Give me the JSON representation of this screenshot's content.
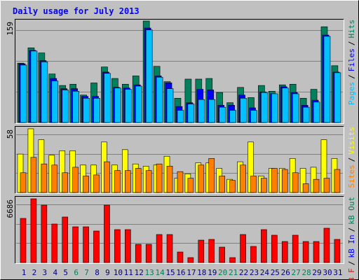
{
  "chart_data": [
    {
      "type": "bar",
      "title": "Daily usage for July 2013",
      "ylim": [
        0,
        159
      ],
      "yticks": [
        159
      ],
      "legend_separator": "/",
      "series": [
        {
          "name": "Pages",
          "color": "#00c0ff",
          "values": [
            90,
            112,
            95,
            65,
            51,
            49,
            38,
            38,
            77,
            54,
            52,
            57,
            145,
            71,
            53,
            19,
            29,
            36,
            36,
            24,
            19,
            38,
            19,
            47,
            45,
            54,
            45,
            24,
            32,
            135,
            78
          ]
        },
        {
          "name": "Files",
          "color": "#0000ff",
          "values": [
            92,
            113,
            97,
            69,
            53,
            53,
            41,
            41,
            79,
            55,
            54,
            59,
            148,
            73,
            62,
            25,
            31,
            52,
            51,
            27,
            27,
            43,
            23,
            48,
            45,
            56,
            47,
            27,
            35,
            137,
            79
          ]
        },
        {
          "name": "Hits",
          "color": "#00805c",
          "values": [
            93,
            117,
            109,
            76,
            58,
            60,
            43,
            62,
            87,
            69,
            60,
            73,
            159,
            88,
            64,
            38,
            68,
            68,
            69,
            47,
            31,
            55,
            39,
            58,
            49,
            59,
            60,
            38,
            52,
            150,
            89
          ]
        }
      ]
    },
    {
      "type": "bar",
      "ylim": [
        0,
        58
      ],
      "yticks": [
        58
      ],
      "legend_separator": "/",
      "series": [
        {
          "name": "Sites",
          "color": "#ff8000",
          "values": [
            18,
            32,
            26,
            25,
            18,
            23,
            15,
            16,
            28,
            20,
            20,
            22,
            20,
            26,
            24,
            19,
            13,
            25,
            31,
            15,
            11,
            25,
            15,
            13,
            22,
            21,
            18,
            8,
            12,
            13,
            21
          ]
        },
        {
          "name": "Visits",
          "color": "#ffff00",
          "values": [
            35,
            58,
            48,
            34,
            38,
            38,
            25,
            25,
            46,
            25,
            39,
            26,
            24,
            25,
            33,
            13,
            17,
            27,
            27,
            22,
            12,
            28,
            46,
            15,
            22,
            22,
            31,
            22,
            23,
            48,
            31
          ]
        }
      ]
    },
    {
      "type": "bar",
      "ylim": [
        0,
        6686
      ],
      "yticks": [
        6686
      ],
      "legend_separator": "/",
      "categories": [
        "1",
        "2",
        "3",
        "4",
        "5",
        "6",
        "7",
        "8",
        "9",
        "10",
        "11",
        "12",
        "13",
        "14",
        "15",
        "16",
        "17",
        "18",
        "19",
        "20",
        "21",
        "22",
        "23",
        "24",
        "25",
        "26",
        "27",
        "28",
        "29",
        "30",
        "31"
      ],
      "category_colors": [
        "#000080",
        "#000080",
        "#000080",
        "#000080",
        "#000080",
        "#00805c",
        "#00805c",
        "#000080",
        "#000080",
        "#000080",
        "#000080",
        "#000080",
        "#00805c",
        "#00805c",
        "#000080",
        "#000080",
        "#000080",
        "#000080",
        "#000080",
        "#00805c",
        "#00805c",
        "#000080",
        "#000080",
        "#000080",
        "#000080",
        "#000080",
        "#00805c",
        "#00805c",
        "#000080",
        "#000080",
        "#000080"
      ],
      "series": [
        {
          "name": "kB F",
          "color": "#ff0000",
          "values": [
            4629,
            6686,
            6025,
            4041,
            4776,
            3747,
            3747,
            3306,
            6025,
            3453,
            3453,
            1910,
            1910,
            2939,
            2939,
            1102,
            514,
            2351,
            2425,
            1616,
            514,
            2939,
            1690,
            3453,
            2866,
            2204,
            2866,
            2204,
            2204,
            3600,
            2425
          ]
        },
        {
          "name": "kB In",
          "color": "#0000ff"
        },
        {
          "name": "kB Out",
          "color": "#00805c"
        }
      ]
    }
  ]
}
